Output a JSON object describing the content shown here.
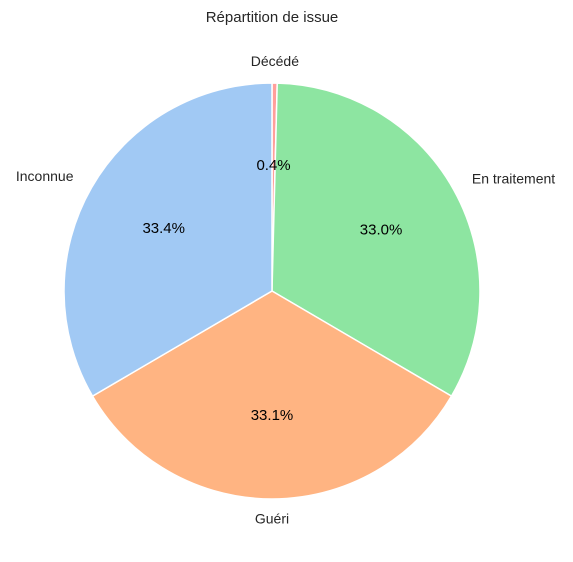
{
  "chart_data": {
    "type": "pie",
    "title": "Répartition de issue",
    "categories": [
      "Décédé",
      "En traitement",
      "Guéri",
      "Inconnue"
    ],
    "values": [
      0.4,
      33.0,
      33.1,
      33.4
    ],
    "value_labels": [
      "0.4%",
      "33.0%",
      "33.1%",
      "33.4%"
    ],
    "colors": [
      "#ff9f9b",
      "#8de5a1",
      "#ffb482",
      "#a1c9f4"
    ],
    "start_angle_deg": 90,
    "direction": "clockwise",
    "legend": "none"
  }
}
